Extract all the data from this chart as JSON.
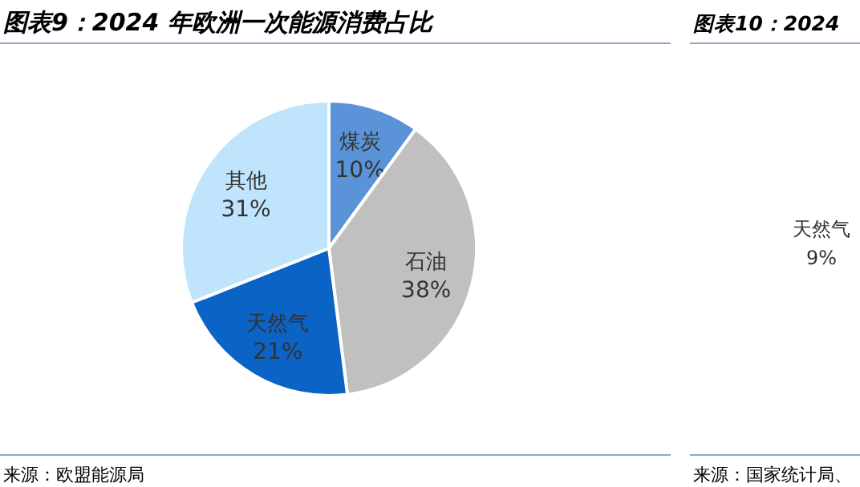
{
  "chart_data": [
    {
      "type": "pie",
      "title": "图表9：2024 年欧洲一次能源消费占比",
      "categories": [
        "煤炭",
        "石油",
        "天然气",
        "其他"
      ],
      "values": [
        10,
        38,
        21,
        31
      ],
      "colors": [
        "#5b93d8",
        "#c0c0c0",
        "#0b63c6",
        "#bfe4fb"
      ],
      "value_labels": [
        "10%",
        "38%",
        "21%",
        "31%"
      ],
      "annotations": [
        "来源：欧盟能源局"
      ]
    },
    {
      "type": "other",
      "title": "图表10：2024",
      "annotations": [
        "天然气",
        "9%",
        "来源：国家统计局、"
      ]
    }
  ]
}
